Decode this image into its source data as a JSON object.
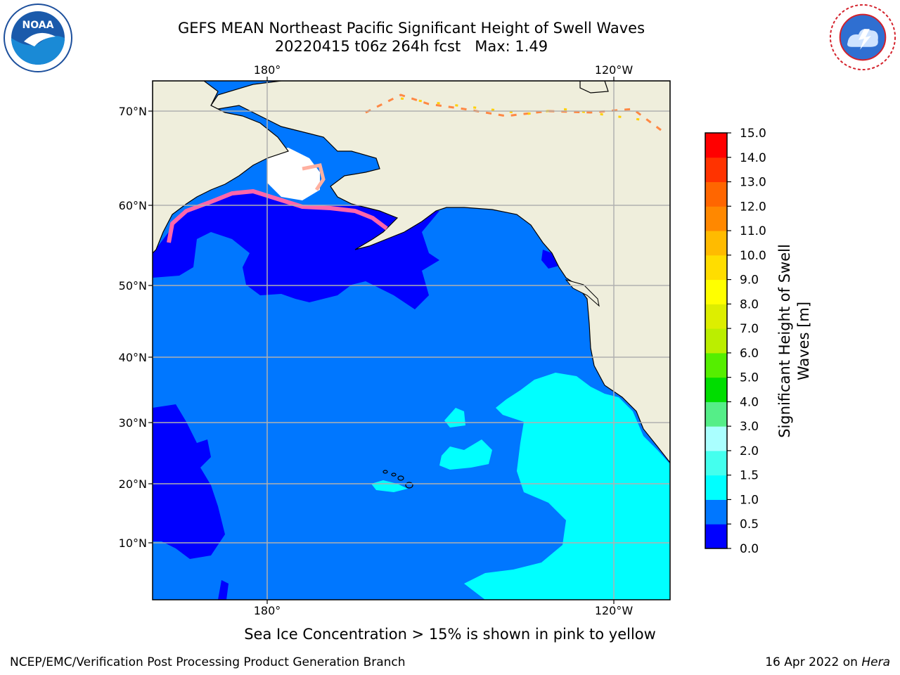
{
  "header": {
    "title_line1": "GEFS MEAN Northeast Pacific Significant Height of Swell Waves",
    "title_line2": "20220415 t06z 264h fcst   Max: 1.49"
  },
  "logos": {
    "left": {
      "icon": "noaa-logo-icon",
      "text": "NOAA"
    },
    "right": {
      "icon": "national-weather-service-logo-icon"
    }
  },
  "map": {
    "top_lon_labels": [
      "180°",
      "120°W"
    ],
    "bottom_lon_labels": [
      "180°",
      "120°W"
    ],
    "lat_labels": [
      "70°N",
      "60°N",
      "50°N",
      "40°N",
      "30°N",
      "20°N",
      "10°N"
    ],
    "colors": {
      "land": "#efeedc",
      "sea_ice_low": "#ff66aa",
      "sea_ice_high": "#ffd000",
      "grid": "#b0b0b0"
    }
  },
  "colorbar": {
    "ticks": [
      "0.0",
      "0.5",
      "1.0",
      "1.5",
      "2.0",
      "3.0",
      "4.0",
      "5.0",
      "6.0",
      "7.0",
      "8.0",
      "9.0",
      "10.0",
      "11.0",
      "12.0",
      "13.0",
      "14.0",
      "15.0"
    ],
    "colors": [
      "#0000ff",
      "#0077ff",
      "#00ffff",
      "#44ffee",
      "#aaffff",
      "#55ee88",
      "#00dd00",
      "#55ee00",
      "#bbee00",
      "#ddee00",
      "#ffff00",
      "#ffdd00",
      "#ffbb00",
      "#ff8800",
      "#ff6600",
      "#ff3300",
      "#ff0000"
    ],
    "label_line1": "Significant Height of Swell",
    "label_line2": "Waves [m]"
  },
  "footer": {
    "note": "Sea Ice Concentration > 15% is shown in pink to yellow",
    "credit": "NCEP/EMC/Verification Post Processing Product Generation Branch",
    "date": "16 Apr 2022 on ",
    "host": "Hera"
  }
}
